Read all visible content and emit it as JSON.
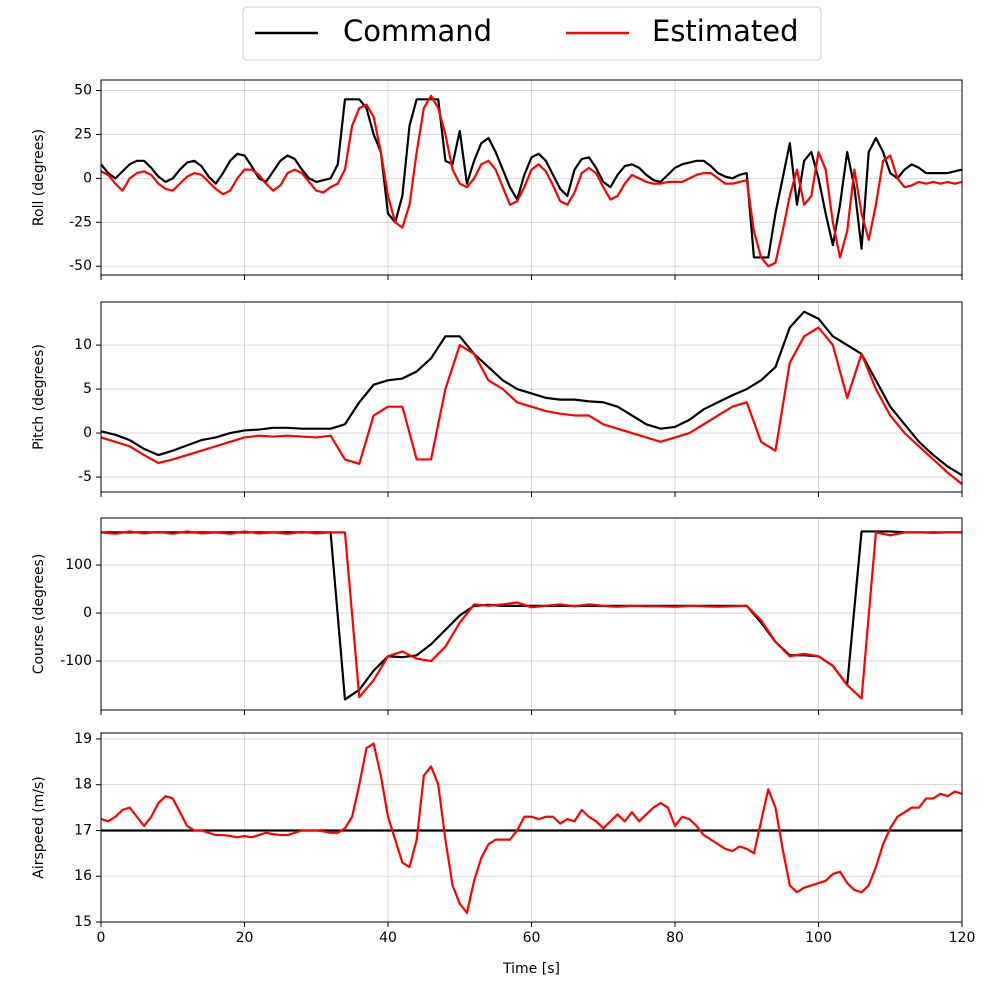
{
  "chart_data": [
    {
      "type": "line",
      "ylabel": "Roll (degrees)",
      "grid": true,
      "x": [
        0,
        1,
        2,
        3,
        4,
        5,
        6,
        7,
        8,
        9,
        10,
        11,
        12,
        13,
        14,
        15,
        16,
        17,
        18,
        19,
        20,
        21,
        22,
        23,
        24,
        25,
        26,
        27,
        28,
        29,
        30,
        31,
        32,
        33,
        34,
        35,
        36,
        37,
        38,
        39,
        40,
        41,
        42,
        43,
        44,
        45,
        46,
        47,
        48,
        49,
        50,
        51,
        52,
        53,
        54,
        55,
        56,
        57,
        58,
        59,
        60,
        61,
        62,
        63,
        64,
        65,
        66,
        67,
        68,
        69,
        70,
        71,
        72,
        73,
        74,
        75,
        76,
        77,
        78,
        79,
        80,
        81,
        82,
        83,
        84,
        85,
        86,
        87,
        88,
        89,
        90,
        91,
        92,
        93,
        94,
        95,
        96,
        97,
        98,
        99,
        100,
        101,
        102,
        103,
        104,
        105,
        106,
        107,
        108,
        109,
        110,
        111,
        112,
        113,
        114,
        115,
        116,
        117,
        118,
        119,
        120
      ],
      "xlim": [
        0,
        120
      ],
      "xticks": [
        0,
        20,
        40,
        60,
        80,
        100,
        120
      ],
      "ylim": [
        -55,
        56
      ],
      "yticks": [
        -50,
        -25,
        0,
        25,
        50
      ],
      "series": [
        {
          "name": "Command",
          "color": "#000000",
          "values": [
            8,
            3,
            0,
            4,
            8,
            10,
            10,
            6,
            1,
            -2,
            0,
            5,
            9,
            10,
            7,
            1,
            -3,
            3,
            10,
            14,
            13,
            7,
            0,
            -2,
            4,
            10,
            13,
            11,
            5,
            0,
            -2,
            -1,
            0,
            8,
            45,
            45,
            45,
            40,
            25,
            15,
            -20,
            -25,
            -10,
            30,
            45,
            45,
            45,
            45,
            10,
            8,
            27,
            -3,
            10,
            20,
            23,
            15,
            5,
            -5,
            -12,
            2,
            12,
            14,
            10,
            2,
            -6,
            -10,
            5,
            11,
            12,
            6,
            -2,
            -5,
            2,
            7,
            8,
            6,
            2,
            -1,
            -2,
            2,
            6,
            8,
            9,
            10,
            10,
            7,
            3,
            1,
            0,
            2,
            3,
            -45,
            -45,
            -45,
            -20,
            0,
            20,
            -15,
            10,
            15,
            0,
            -20,
            -38,
            -15,
            15,
            -5,
            -40,
            15,
            23,
            15,
            3,
            0,
            5,
            8,
            6,
            3,
            3,
            3,
            3,
            4,
            5
          ]
        },
        {
          "name": "Estimated",
          "color": "#ff0000",
          "values": [
            4,
            2,
            -3,
            -7,
            0,
            3,
            4,
            2,
            -3,
            -6,
            -7,
            -3,
            1,
            3,
            2,
            -2,
            -6,
            -9,
            -7,
            0,
            5,
            5,
            2,
            -3,
            -7,
            -4,
            3,
            5,
            3,
            -2,
            -7,
            -8,
            -5,
            -3,
            5,
            30,
            40,
            42,
            35,
            15,
            -10,
            -25,
            -28,
            -15,
            15,
            40,
            47,
            40,
            25,
            5,
            -3,
            -5,
            0,
            8,
            10,
            5,
            -5,
            -15,
            -13,
            -5,
            5,
            8,
            4,
            -4,
            -13,
            -15,
            -8,
            3,
            6,
            3,
            -5,
            -12,
            -10,
            -3,
            2,
            0,
            -2,
            -3,
            -3,
            -2,
            -2,
            -2,
            0,
            2,
            3,
            3,
            0,
            -3,
            -3,
            -2,
            -1,
            -30,
            -45,
            -50,
            -48,
            -30,
            -10,
            5,
            -15,
            -10,
            15,
            5,
            -25,
            -45,
            -30,
            5,
            -20,
            -35,
            -15,
            10,
            13,
            0,
            -5,
            -4,
            -2,
            -3,
            -2,
            -3,
            -2,
            -3,
            -2
          ]
        }
      ]
    },
    {
      "type": "line",
      "ylabel": "Pitch (degrees)",
      "grid": true,
      "x": [
        0,
        2,
        4,
        6,
        8,
        10,
        12,
        14,
        16,
        18,
        20,
        22,
        24,
        26,
        28,
        30,
        32,
        34,
        36,
        38,
        40,
        42,
        44,
        46,
        48,
        50,
        52,
        54,
        56,
        58,
        60,
        62,
        64,
        66,
        68,
        70,
        72,
        74,
        76,
        78,
        80,
        82,
        84,
        86,
        88,
        90,
        92,
        94,
        96,
        98,
        100,
        102,
        104,
        106,
        108,
        110,
        112,
        114,
        116,
        118,
        120
      ],
      "xlim": [
        0,
        120
      ],
      "xticks": [
        0,
        20,
        40,
        60,
        80,
        100,
        120
      ],
      "ylim": [
        -6.7,
        14.9
      ],
      "yticks": [
        -5,
        0,
        5,
        10
      ],
      "series": [
        {
          "color": "#000000",
          "values": [
            0.2,
            -0.2,
            -0.8,
            -1.8,
            -2.5,
            -2,
            -1.4,
            -0.8,
            -0.5,
            0,
            0.3,
            0.4,
            0.6,
            0.6,
            0.5,
            0.5,
            0.5,
            1,
            3.5,
            5.5,
            6,
            6.2,
            7,
            8.5,
            11,
            11,
            9,
            7.5,
            6,
            5,
            4.5,
            4,
            3.8,
            3.8,
            3.6,
            3.5,
            3,
            2,
            1,
            0.5,
            0.7,
            1.5,
            2.7,
            3.5,
            4.3,
            5,
            6,
            7.5,
            12,
            13.8,
            13,
            11,
            10,
            9,
            6,
            3,
            1,
            -1,
            -2.5,
            -3.8,
            -4.8
          ]
        },
        {
          "color": "#ff0000",
          "values": [
            -0.5,
            -1,
            -1.5,
            -2.5,
            -3.4,
            -3,
            -2.5,
            -2,
            -1.5,
            -1,
            -0.5,
            -0.3,
            -0.4,
            -0.3,
            -0.4,
            -0.5,
            -0.3,
            -3,
            -3.5,
            2,
            3,
            3,
            -3,
            -3,
            5,
            10,
            9,
            6,
            5,
            3.5,
            3,
            2.5,
            2.2,
            2,
            2,
            1,
            0.5,
            0,
            -0.5,
            -1,
            -0.5,
            0,
            1,
            2,
            3,
            3.5,
            -1,
            -2,
            8,
            11,
            12,
            10,
            4,
            9,
            5,
            2,
            0,
            -1.5,
            -3,
            -4.5,
            -5.8
          ]
        }
      ]
    },
    {
      "type": "line",
      "ylabel": "Course (degrees)",
      "grid": true,
      "x": [
        0,
        2,
        4,
        6,
        8,
        10,
        12,
        14,
        16,
        18,
        20,
        22,
        24,
        26,
        28,
        30,
        32,
        34,
        36,
        38,
        40,
        42,
        44,
        46,
        48,
        50,
        52,
        54,
        56,
        58,
        60,
        62,
        64,
        66,
        68,
        70,
        72,
        74,
        76,
        78,
        80,
        82,
        84,
        86,
        88,
        90,
        92,
        94,
        96,
        98,
        100,
        102,
        104,
        106,
        108,
        110,
        112,
        114,
        116,
        118,
        120
      ],
      "xlim": [
        0,
        120
      ],
      "xticks": [
        0,
        20,
        40,
        60,
        80,
        100,
        120
      ],
      "ylim": [
        -202,
        198
      ],
      "yticks": [
        -100,
        0,
        100
      ],
      "series": [
        {
          "color": "#000000",
          "values": [
            168,
            168,
            168,
            168,
            168,
            168,
            168,
            168,
            168,
            168,
            168,
            168,
            168,
            168,
            168,
            168,
            168,
            -180,
            -160,
            -120,
            -90,
            -92,
            -88,
            -65,
            -35,
            -5,
            15,
            17,
            15,
            15,
            15,
            15,
            15,
            15,
            15,
            15,
            15,
            15,
            15,
            15,
            15,
            15,
            15,
            15,
            15,
            15,
            -20,
            -60,
            -88,
            -88,
            -90,
            -110,
            -150,
            170,
            170,
            170,
            168,
            168,
            168,
            168,
            168
          ]
        },
        {
          "color": "#ff0000",
          "values": [
            168,
            165,
            170,
            166,
            169,
            165,
            170,
            166,
            168,
            165,
            170,
            166,
            168,
            165,
            169,
            166,
            168,
            168,
            -175,
            -140,
            -90,
            -80,
            -95,
            -100,
            -70,
            -20,
            18,
            15,
            18,
            22,
            12,
            15,
            18,
            14,
            18,
            15,
            13,
            15,
            14,
            14,
            13,
            15,
            14,
            13,
            14,
            15,
            -15,
            -60,
            -90,
            -85,
            -90,
            -110,
            -150,
            -178,
            168,
            162,
            168,
            168,
            167,
            168,
            168
          ]
        }
      ]
    },
    {
      "type": "line",
      "ylabel": "Airspeed (m/s)",
      "xlabel": "Time [s]",
      "grid": true,
      "x": [
        0,
        1,
        2,
        3,
        4,
        5,
        6,
        7,
        8,
        9,
        10,
        11,
        12,
        13,
        14,
        15,
        16,
        17,
        18,
        19,
        20,
        21,
        22,
        23,
        24,
        25,
        26,
        27,
        28,
        29,
        30,
        31,
        32,
        33,
        34,
        35,
        36,
        37,
        38,
        39,
        40,
        41,
        42,
        43,
        44,
        45,
        46,
        47,
        48,
        49,
        50,
        51,
        52,
        53,
        54,
        55,
        56,
        57,
        58,
        59,
        60,
        61,
        62,
        63,
        64,
        65,
        66,
        67,
        68,
        69,
        70,
        71,
        72,
        73,
        74,
        75,
        76,
        77,
        78,
        79,
        80,
        81,
        82,
        83,
        84,
        85,
        86,
        87,
        88,
        89,
        90,
        91,
        92,
        93,
        94,
        95,
        96,
        97,
        98,
        99,
        100,
        101,
        102,
        103,
        104,
        105,
        106,
        107,
        108,
        109,
        110,
        111,
        112,
        113,
        114,
        115,
        116,
        117,
        118,
        119,
        120
      ],
      "xlim": [
        0,
        120
      ],
      "xticks": [
        0,
        20,
        40,
        60,
        80,
        100,
        120
      ],
      "ylim": [
        15,
        19.13
      ],
      "yticks": [
        15,
        16,
        17,
        18,
        19
      ],
      "series": [
        {
          "color": "#000000",
          "values": [
            17,
            17,
            17,
            17,
            17,
            17,
            17,
            17,
            17,
            17,
            17,
            17,
            17,
            17,
            17,
            17,
            17,
            17,
            17,
            17,
            17,
            17,
            17,
            17,
            17,
            17,
            17,
            17,
            17,
            17,
            17,
            17,
            17,
            17,
            17,
            17,
            17,
            17,
            17,
            17,
            17,
            17,
            17,
            17,
            17,
            17,
            17,
            17,
            17,
            17,
            17,
            17,
            17,
            17,
            17,
            17,
            17,
            17,
            17,
            17,
            17,
            17,
            17,
            17,
            17,
            17,
            17,
            17,
            17,
            17,
            17,
            17,
            17,
            17,
            17,
            17,
            17,
            17,
            17,
            17,
            17,
            17,
            17,
            17,
            17,
            17,
            17,
            17,
            17,
            17,
            17,
            17,
            17,
            17,
            17,
            17,
            17,
            17,
            17,
            17,
            17,
            17,
            17,
            17,
            17,
            17,
            17,
            17,
            17,
            17,
            17,
            17,
            17,
            17,
            17,
            17,
            17,
            17,
            17,
            17,
            17
          ]
        },
        {
          "color": "#ff0000",
          "values": [
            17.25,
            17.2,
            17.3,
            17.45,
            17.5,
            17.3,
            17.1,
            17.3,
            17.6,
            17.75,
            17.7,
            17.4,
            17.1,
            17.0,
            17.0,
            16.95,
            16.9,
            16.9,
            16.88,
            16.85,
            16.88,
            16.85,
            16.9,
            16.95,
            16.92,
            16.9,
            16.9,
            16.95,
            17,
            17,
            17,
            16.98,
            16.95,
            16.95,
            17.05,
            17.3,
            18,
            18.8,
            18.9,
            18.2,
            17.3,
            16.8,
            16.3,
            16.2,
            16.8,
            18.2,
            18.4,
            18,
            16.8,
            15.8,
            15.4,
            15.2,
            15.9,
            16.4,
            16.7,
            16.8,
            16.8,
            16.8,
            17,
            17.3,
            17.3,
            17.25,
            17.3,
            17.3,
            17.15,
            17.25,
            17.2,
            17.45,
            17.3,
            17.2,
            17.05,
            17.2,
            17.35,
            17.2,
            17.4,
            17.2,
            17.35,
            17.5,
            17.6,
            17.5,
            17.1,
            17.3,
            17.25,
            17.1,
            16.9,
            16.8,
            16.7,
            16.6,
            16.55,
            16.65,
            16.6,
            16.5,
            17.2,
            17.9,
            17.5,
            16.6,
            15.8,
            15.65,
            15.75,
            15.8,
            15.85,
            15.9,
            16.05,
            16.1,
            15.85,
            15.7,
            15.65,
            15.8,
            16.2,
            16.7,
            17.05,
            17.3,
            17.4,
            17.5,
            17.5,
            17.7,
            17.7,
            17.8,
            17.75,
            17.85,
            17.8
          ]
        }
      ]
    }
  ]
}
